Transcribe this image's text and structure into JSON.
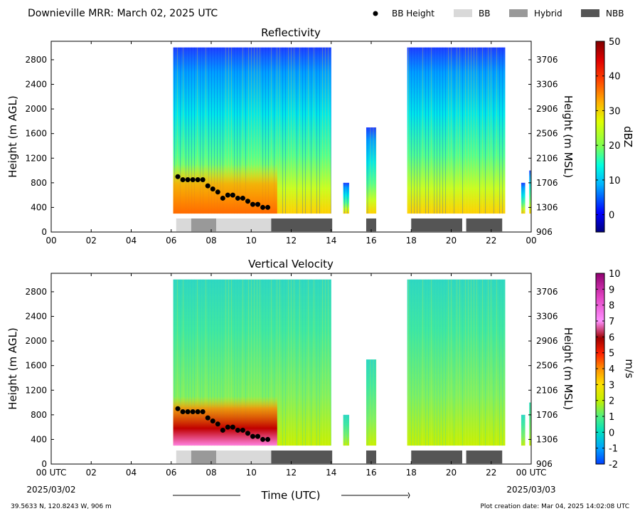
{
  "header": {
    "title": "Downieville MRR:  March 02, 2025 UTC",
    "legend": [
      {
        "label": "BB Height",
        "kind": "dot",
        "color": "#000000"
      },
      {
        "label": "BB",
        "kind": "swatch",
        "color": "#d9d9d9"
      },
      {
        "label": "Hybrid",
        "kind": "swatch",
        "color": "#999999"
      },
      {
        "label": "NBB",
        "kind": "swatch",
        "color": "#555555"
      }
    ]
  },
  "footer": {
    "location": "39.5633 N, 120.8243 W, 906 m",
    "creation": "Plot creation date: Mar 04, 2025 14:02:08 UTC",
    "xlabel": "Time (UTC)",
    "start_date": "2025/03/02",
    "end_date": "2025/03/03",
    "start_tick": "00 UTC",
    "end_tick": "00 UTC"
  },
  "chart_data": [
    {
      "type": "heatmap",
      "title": "Reflectivity",
      "ylabel": "Height (m AGL)",
      "ylabel2": "Height (m MSL)",
      "xlim": [
        0,
        24
      ],
      "ylim": [
        0,
        3100
      ],
      "xticks": [
        "00",
        "02",
        "04",
        "06",
        "08",
        "10",
        "12",
        "14",
        "16",
        "18",
        "20",
        "22",
        "00"
      ],
      "yticks": [
        0,
        400,
        800,
        1200,
        1600,
        2000,
        2400,
        2800
      ],
      "yticks2": [
        906,
        1306,
        1706,
        2106,
        2506,
        2906,
        3306,
        3706
      ],
      "colorbar": {
        "label": "dBZ",
        "min": -5,
        "max": 50,
        "ticks": [
          0,
          10,
          20,
          30,
          40,
          50
        ],
        "palette": "reflectivity"
      },
      "echo_segments": [
        {
          "start": 6.1,
          "end": 14.0,
          "top": 3000
        },
        {
          "start": 14.6,
          "end": 14.9,
          "top": 800
        },
        {
          "start": 15.75,
          "end": 16.25,
          "top": 1700
        },
        {
          "start": 17.8,
          "end": 22.7,
          "top": 3000
        },
        {
          "start": 23.5,
          "end": 23.7,
          "top": 800
        },
        {
          "start": 23.9,
          "end": 24.0,
          "top": 1000
        }
      ],
      "bb_height": {
        "time": [
          6.33,
          6.58,
          6.83,
          7.08,
          7.33,
          7.58,
          7.83,
          8.08,
          8.33,
          8.58,
          8.83,
          9.08,
          9.33,
          9.58,
          9.83,
          10.08,
          10.33,
          10.58,
          10.83
        ],
        "height": [
          900,
          850,
          850,
          850,
          850,
          850,
          750,
          700,
          650,
          550,
          600,
          600,
          550,
          550,
          500,
          450,
          450,
          400,
          400
        ]
      },
      "bb_classification": [
        {
          "start": 6.25,
          "end": 7.0,
          "class": "BB"
        },
        {
          "start": 7.0,
          "end": 8.25,
          "class": "Hybrid"
        },
        {
          "start": 8.25,
          "end": 11.0,
          "class": "BB"
        },
        {
          "start": 11.0,
          "end": 14.05,
          "class": "NBB"
        },
        {
          "start": 15.75,
          "end": 16.25,
          "class": "NBB"
        },
        {
          "start": 18.0,
          "end": 20.55,
          "class": "NBB"
        },
        {
          "start": 20.75,
          "end": 22.55,
          "class": "NBB"
        }
      ]
    },
    {
      "type": "heatmap",
      "title": "Vertical Velocity",
      "ylabel": "Height (m AGL)",
      "ylabel2": "Height (m MSL)",
      "xlim": [
        0,
        24
      ],
      "ylim": [
        0,
        3100
      ],
      "xticks": [
        "00 UTC",
        "02",
        "04",
        "06",
        "08",
        "10",
        "12",
        "14",
        "16",
        "18",
        "20",
        "22",
        "00 UTC"
      ],
      "yticks": [
        0,
        400,
        800,
        1200,
        1600,
        2000,
        2400,
        2800
      ],
      "yticks2": [
        906,
        1306,
        1706,
        2106,
        2506,
        2906,
        3306,
        3706
      ],
      "colorbar": {
        "label": "m/s",
        "min": -2,
        "max": 10,
        "ticks": [
          -2,
          -1,
          0,
          1,
          2,
          3,
          4,
          5,
          6,
          7,
          8,
          9,
          10
        ],
        "palette": "velocity"
      },
      "echo_segments": [
        {
          "start": 6.1,
          "end": 14.0,
          "top": 3000
        },
        {
          "start": 14.6,
          "end": 14.9,
          "top": 800
        },
        {
          "start": 15.75,
          "end": 16.25,
          "top": 1700
        },
        {
          "start": 17.8,
          "end": 22.7,
          "top": 3000
        },
        {
          "start": 23.5,
          "end": 23.7,
          "top": 800
        },
        {
          "start": 23.9,
          "end": 24.0,
          "top": 1000
        }
      ],
      "bb_height": {
        "time": [
          6.33,
          6.58,
          6.83,
          7.08,
          7.33,
          7.58,
          7.83,
          8.08,
          8.33,
          8.58,
          8.83,
          9.08,
          9.33,
          9.58,
          9.83,
          10.08,
          10.33,
          10.58,
          10.83
        ],
        "height": [
          900,
          850,
          850,
          850,
          850,
          850,
          750,
          700,
          650,
          550,
          600,
          600,
          550,
          550,
          500,
          450,
          450,
          400,
          400
        ]
      },
      "bb_classification": [
        {
          "start": 6.25,
          "end": 7.0,
          "class": "BB"
        },
        {
          "start": 7.0,
          "end": 8.25,
          "class": "Hybrid"
        },
        {
          "start": 8.25,
          "end": 11.0,
          "class": "BB"
        },
        {
          "start": 11.0,
          "end": 14.05,
          "class": "NBB"
        },
        {
          "start": 15.75,
          "end": 16.25,
          "class": "NBB"
        },
        {
          "start": 18.0,
          "end": 20.55,
          "class": "NBB"
        },
        {
          "start": 20.75,
          "end": 22.55,
          "class": "NBB"
        }
      ]
    }
  ]
}
